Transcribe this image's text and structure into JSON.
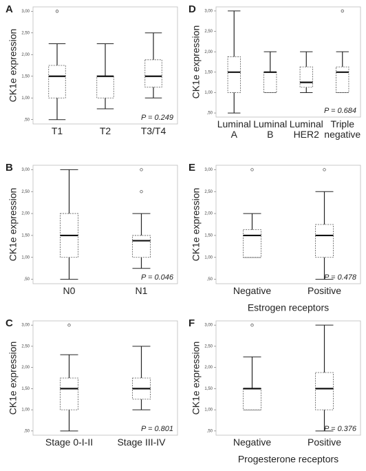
{
  "chart_data": [
    {
      "type": "box",
      "panel": "A",
      "ylabel": "CK1e expression",
      "annotation": "P = 0.249",
      "categories": [
        "T1",
        "T2",
        "T3/T4"
      ],
      "boxes": [
        {
          "whislo": 0.5,
          "q1": 1.0,
          "med": 1.5,
          "q3": 1.75,
          "whishi": 2.25,
          "fliers": [
            3.0
          ]
        },
        {
          "whislo": 0.75,
          "q1": 1.0,
          "med": 1.5,
          "q3": 1.5,
          "whishi": 2.25,
          "fliers": []
        },
        {
          "whislo": 1.0,
          "q1": 1.25,
          "med": 1.5,
          "q3": 1.88,
          "whishi": 2.5,
          "fliers": []
        }
      ],
      "ylim": [
        0.4,
        3.1
      ],
      "yticks": [
        {
          "value": 0.5,
          "label": ",50"
        },
        {
          "value": 1.0,
          "label": "1,00"
        },
        {
          "value": 1.5,
          "label": "1,50"
        },
        {
          "value": 2.0,
          "label": "2,00"
        },
        {
          "value": 2.5,
          "label": "2,50"
        },
        {
          "value": 3.0,
          "label": "3,00"
        }
      ]
    },
    {
      "type": "box",
      "panel": "D",
      "ylabel": "CK1e expression",
      "annotation": "P = 0.684",
      "categories": [
        "Luminal A",
        "Luminal B",
        "Luminal HER2",
        "Triple negative"
      ],
      "boxes": [
        {
          "whislo": 0.5,
          "q1": 1.0,
          "med": 1.5,
          "q3": 1.88,
          "whishi": 3.0,
          "fliers": []
        },
        {
          "whislo": 1.0,
          "q1": 1.0,
          "med": 1.5,
          "q3": 1.5,
          "whishi": 2.0,
          "fliers": []
        },
        {
          "whislo": 1.0,
          "q1": 1.13,
          "med": 1.25,
          "q3": 1.63,
          "whishi": 2.0,
          "fliers": []
        },
        {
          "whislo": 1.0,
          "q1": 1.0,
          "med": 1.5,
          "q3": 1.63,
          "whishi": 2.0,
          "fliers": [
            3.0
          ]
        }
      ],
      "ylim": [
        0.4,
        3.1
      ],
      "yticks": [
        {
          "value": 0.5,
          "label": ",50"
        },
        {
          "value": 1.0,
          "label": "1,00"
        },
        {
          "value": 1.5,
          "label": "1,50"
        },
        {
          "value": 2.0,
          "label": "2,00"
        },
        {
          "value": 2.5,
          "label": "2,50"
        },
        {
          "value": 3.0,
          "label": "3,00"
        }
      ]
    },
    {
      "type": "box",
      "panel": "B",
      "ylabel": "CK1e expression",
      "annotation": "P = 0.046",
      "categories": [
        "N0",
        "N1"
      ],
      "boxes": [
        {
          "whislo": 0.5,
          "q1": 1.0,
          "med": 1.5,
          "q3": 2.0,
          "whishi": 3.0,
          "fliers": []
        },
        {
          "whislo": 0.75,
          "q1": 1.0,
          "med": 1.38,
          "q3": 1.5,
          "whishi": 2.0,
          "fliers": [
            2.5,
            3.0
          ]
        }
      ],
      "ylim": [
        0.4,
        3.1
      ],
      "yticks": [
        {
          "value": 0.5,
          "label": ",50"
        },
        {
          "value": 1.0,
          "label": "1,00"
        },
        {
          "value": 1.5,
          "label": "1,50"
        },
        {
          "value": 2.0,
          "label": "2,00"
        },
        {
          "value": 2.5,
          "label": "2,50"
        },
        {
          "value": 3.0,
          "label": "3,00"
        }
      ]
    },
    {
      "type": "box",
      "panel": "E",
      "ylabel": "CK1e expression",
      "annotation": "P = 0.478",
      "xlabel": "Estrogen receptors",
      "categories": [
        "Negative",
        "Positive"
      ],
      "boxes": [
        {
          "whislo": 1.0,
          "q1": 1.0,
          "med": 1.5,
          "q3": 1.63,
          "whishi": 2.0,
          "fliers": [
            3.0
          ]
        },
        {
          "whislo": 0.5,
          "q1": 1.0,
          "med": 1.5,
          "q3": 1.75,
          "whishi": 2.5,
          "fliers": [
            3.0
          ]
        }
      ],
      "ylim": [
        0.4,
        3.1
      ],
      "yticks": [
        {
          "value": 0.5,
          "label": ",50"
        },
        {
          "value": 1.0,
          "label": "1,00"
        },
        {
          "value": 1.5,
          "label": "1,50"
        },
        {
          "value": 2.0,
          "label": "2,00"
        },
        {
          "value": 2.5,
          "label": "2,50"
        },
        {
          "value": 3.0,
          "label": "3,00"
        }
      ]
    },
    {
      "type": "box",
      "panel": "C",
      "ylabel": "CK1e expression",
      "annotation": "P = 0.801",
      "categories": [
        "Stage 0-I-II",
        "Stage III-IV"
      ],
      "boxes": [
        {
          "whislo": 0.5,
          "q1": 1.0,
          "med": 1.5,
          "q3": 1.75,
          "whishi": 2.3,
          "fliers": [
            3.0
          ]
        },
        {
          "whislo": 1.0,
          "q1": 1.25,
          "med": 1.5,
          "q3": 1.75,
          "whishi": 2.5,
          "fliers": []
        }
      ],
      "ylim": [
        0.4,
        3.1
      ],
      "yticks": [
        {
          "value": 0.5,
          "label": ",50"
        },
        {
          "value": 1.0,
          "label": "1,00"
        },
        {
          "value": 1.5,
          "label": "1,50"
        },
        {
          "value": 2.0,
          "label": "2,00"
        },
        {
          "value": 2.5,
          "label": "2,50"
        },
        {
          "value": 3.0,
          "label": "3,00"
        }
      ]
    },
    {
      "type": "box",
      "panel": "F",
      "ylabel": "CK1e expression",
      "annotation": "P = 0.376",
      "xlabel": "Progesterone receptors",
      "categories": [
        "Negative",
        "Positive"
      ],
      "boxes": [
        {
          "whislo": 1.0,
          "q1": 1.0,
          "med": 1.5,
          "q3": 1.5,
          "whishi": 2.25,
          "fliers": [
            3.0
          ]
        },
        {
          "whislo": 0.5,
          "q1": 1.0,
          "med": 1.5,
          "q3": 1.88,
          "whishi": 3.0,
          "fliers": []
        }
      ],
      "ylim": [
        0.4,
        3.1
      ],
      "yticks": [
        {
          "value": 0.5,
          "label": ",50"
        },
        {
          "value": 1.0,
          "label": "1,00"
        },
        {
          "value": 1.5,
          "label": "1,50"
        },
        {
          "value": 2.0,
          "label": "2,00"
        },
        {
          "value": 2.5,
          "label": "2,50"
        },
        {
          "value": 3.0,
          "label": "3,00"
        }
      ]
    }
  ]
}
